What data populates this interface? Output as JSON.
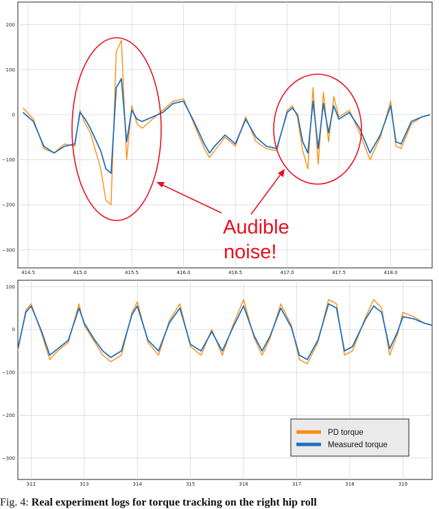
{
  "colors": {
    "pd": "#ff8c10",
    "measured": "#1f6fbf",
    "annotation": "#e8101e",
    "grid": "#d8d8d8"
  },
  "chart_data": [
    {
      "type": "line",
      "xlim": [
        414.4,
        418.4
      ],
      "ylim": [
        -340,
        250
      ],
      "grid": true,
      "xticks": [
        "414.5",
        "415.0",
        "415.5",
        "416.0",
        "416.5",
        "417.0",
        "417.5",
        "418.0"
      ],
      "xtick_values": [
        414.5,
        415.0,
        415.5,
        416.0,
        416.5,
        417.0,
        417.5,
        418.0
      ],
      "yticks": [
        "200",
        "100",
        "0",
        "−100",
        "−200",
        "−300"
      ],
      "ytick_values": [
        200,
        100,
        0,
        -100,
        -200,
        -300
      ],
      "series": [
        {
          "name": "PD torque",
          "x": [
            414.45,
            414.55,
            414.65,
            414.75,
            414.85,
            414.95,
            415.0,
            415.05,
            415.1,
            415.15,
            415.2,
            415.25,
            415.3,
            415.35,
            415.4,
            415.45,
            415.5,
            415.55,
            415.6,
            415.65,
            415.7,
            415.8,
            415.9,
            416.0,
            416.1,
            416.2,
            416.25,
            416.3,
            416.4,
            416.5,
            416.6,
            416.7,
            416.8,
            416.9,
            417.0,
            417.05,
            417.1,
            417.15,
            417.2,
            417.25,
            417.3,
            417.35,
            417.4,
            417.45,
            417.5,
            417.6,
            417.7,
            417.8,
            417.9,
            418.0,
            418.05,
            418.1,
            418.2,
            418.3,
            418.38
          ],
          "y": [
            15,
            -10,
            -75,
            -85,
            -65,
            -70,
            10,
            -20,
            -40,
            -80,
            -120,
            -190,
            -200,
            140,
            165,
            -100,
            20,
            -20,
            -30,
            -20,
            -10,
            10,
            30,
            35,
            -20,
            -75,
            -95,
            -80,
            -50,
            -70,
            -5,
            -60,
            -75,
            -80,
            10,
            20,
            -5,
            -80,
            -120,
            60,
            -110,
            50,
            -60,
            40,
            -5,
            10,
            -40,
            -100,
            -50,
            30,
            -70,
            -75,
            -20,
            -5,
            0
          ]
        },
        {
          "name": "Measured torque",
          "x": [
            414.45,
            414.55,
            414.65,
            414.75,
            414.85,
            414.95,
            415.0,
            415.05,
            415.1,
            415.15,
            415.2,
            415.25,
            415.3,
            415.35,
            415.4,
            415.45,
            415.5,
            415.55,
            415.6,
            415.65,
            415.7,
            415.8,
            415.9,
            416.0,
            416.1,
            416.2,
            416.25,
            416.3,
            416.4,
            416.5,
            416.6,
            416.7,
            416.8,
            416.9,
            417.0,
            417.05,
            417.1,
            417.15,
            417.2,
            417.25,
            417.3,
            417.35,
            417.4,
            417.45,
            417.5,
            417.6,
            417.7,
            417.8,
            417.9,
            418.0,
            418.05,
            418.1,
            418.2,
            418.3,
            418.38
          ],
          "y": [
            5,
            -15,
            -70,
            -85,
            -70,
            -65,
            5,
            -10,
            -30,
            -55,
            -80,
            -120,
            -130,
            60,
            80,
            -60,
            10,
            -10,
            -15,
            -10,
            -5,
            5,
            25,
            30,
            -15,
            -65,
            -85,
            -70,
            -45,
            -65,
            -10,
            -50,
            -70,
            -75,
            5,
            15,
            0,
            -60,
            -85,
            30,
            -75,
            25,
            -40,
            20,
            -10,
            5,
            -30,
            -85,
            -45,
            20,
            -60,
            -65,
            -15,
            -5,
            0
          ]
        }
      ],
      "annotation": {
        "line1": "Audible",
        "line2": "noise!"
      }
    },
    {
      "type": "line",
      "xlim": [
        311.75,
        319.55
      ],
      "ylim": [
        -350,
        115
      ],
      "grid": true,
      "xticks": [
        "312",
        "313",
        "314",
        "315",
        "316",
        "317",
        "318",
        "319"
      ],
      "xtick_values": [
        312,
        313,
        314,
        315,
        316,
        317,
        318,
        319
      ],
      "yticks": [
        "100",
        "0",
        "−100",
        "−200",
        "−300"
      ],
      "ytick_values": [
        100,
        0,
        -100,
        -200,
        -300
      ],
      "legend_position": "lower-right",
      "series": [
        {
          "name": "PD torque",
          "x": [
            311.75,
            311.9,
            312.0,
            312.2,
            312.35,
            312.5,
            312.7,
            312.9,
            313.0,
            313.2,
            313.35,
            313.5,
            313.7,
            313.9,
            314.0,
            314.2,
            314.4,
            314.6,
            314.8,
            315.0,
            315.2,
            315.4,
            315.6,
            315.8,
            316.0,
            316.2,
            316.35,
            316.5,
            316.7,
            316.9,
            317.05,
            317.2,
            317.4,
            317.6,
            317.75,
            317.9,
            318.05,
            318.3,
            318.45,
            318.6,
            318.75,
            318.9,
            319.0,
            319.2,
            319.4,
            319.55
          ],
          "y": [
            -50,
            45,
            60,
            -10,
            -70,
            -50,
            -30,
            60,
            10,
            -30,
            -60,
            -75,
            -60,
            40,
            65,
            -30,
            -60,
            20,
            60,
            -40,
            -60,
            0,
            -60,
            10,
            70,
            -20,
            -60,
            -20,
            60,
            10,
            -70,
            -80,
            -30,
            70,
            60,
            -60,
            -50,
            30,
            70,
            50,
            -60,
            -10,
            40,
            30,
            15,
            10
          ]
        },
        {
          "name": "Measured torque",
          "x": [
            311.75,
            311.9,
            312.0,
            312.2,
            312.35,
            312.5,
            312.7,
            312.9,
            313.0,
            313.2,
            313.35,
            313.5,
            313.7,
            313.9,
            314.0,
            314.2,
            314.4,
            314.6,
            314.8,
            315.0,
            315.2,
            315.4,
            315.6,
            315.8,
            316.0,
            316.2,
            316.35,
            316.5,
            316.7,
            316.9,
            317.05,
            317.2,
            317.4,
            317.6,
            317.75,
            317.9,
            318.05,
            318.3,
            318.45,
            318.6,
            318.75,
            318.9,
            319.0,
            319.2,
            319.4,
            319.55
          ],
          "y": [
            -45,
            40,
            55,
            -5,
            -60,
            -45,
            -25,
            50,
            15,
            -25,
            -50,
            -65,
            -50,
            35,
            55,
            -25,
            -50,
            15,
            50,
            -35,
            -50,
            -5,
            -50,
            5,
            55,
            -15,
            -50,
            -15,
            50,
            5,
            -60,
            -70,
            -25,
            60,
            50,
            -50,
            -40,
            25,
            55,
            40,
            -45,
            -5,
            30,
            25,
            15,
            10
          ]
        }
      ]
    }
  ],
  "caption": {
    "prefix": "Fig. 4:",
    "bold": "Real experiment logs for torque tracking on the right hip roll"
  }
}
